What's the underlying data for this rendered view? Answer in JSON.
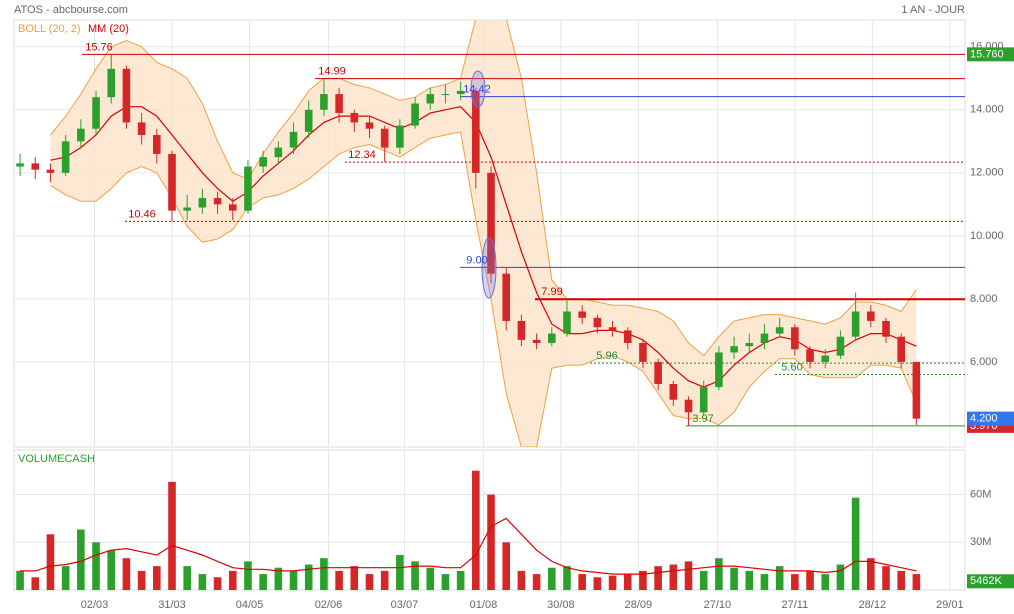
{
  "header": {
    "title": "ATOS - abcbourse.com",
    "period": "1 AN - JOUR"
  },
  "chart_data": [
    {
      "type": "candlestick",
      "xlim": [
        -0.4,
        62.2
      ],
      "xticks": [
        {
          "value": 4.9,
          "label": "02/03"
        },
        {
          "value": 10.0,
          "label": "31/03"
        },
        {
          "value": 15.1,
          "label": "04/05"
        },
        {
          "value": 20.3,
          "label": "02/06"
        },
        {
          "value": 25.3,
          "label": "03/07"
        },
        {
          "value": 30.5,
          "label": "01/08"
        },
        {
          "value": 35.6,
          "label": "30/08"
        },
        {
          "value": 40.7,
          "label": "28/09"
        },
        {
          "value": 45.9,
          "label": "27/10"
        },
        {
          "value": 51.0,
          "label": "27/11"
        },
        {
          "value": 56.1,
          "label": "28/12"
        },
        {
          "value": 61.2,
          "label": "29/01"
        }
      ],
      "ylim": [
        3.3,
        16.85
      ],
      "yticks": [
        {
          "value": 6,
          "label": "6.000"
        },
        {
          "value": 8,
          "label": "8.000"
        },
        {
          "value": 10,
          "label": "10.000"
        },
        {
          "value": 12,
          "label": "12.000"
        },
        {
          "value": 14,
          "label": "14.000"
        },
        {
          "value": 16,
          "label": "16.000"
        }
      ],
      "grid": true,
      "up_color": "#2ca02c",
      "down_color": "#d62728",
      "candles": [
        [
          12.2,
          12.6,
          11.9,
          12.3
        ],
        [
          12.3,
          12.5,
          11.8,
          12.1
        ],
        [
          12.1,
          12.3,
          11.7,
          12.0
        ],
        [
          12.0,
          13.2,
          11.9,
          13.0
        ],
        [
          13.0,
          13.7,
          12.8,
          13.4
        ],
        [
          13.4,
          14.6,
          13.2,
          14.4
        ],
        [
          14.4,
          15.76,
          14.2,
          15.3
        ],
        [
          15.3,
          15.4,
          13.4,
          13.6
        ],
        [
          13.6,
          13.9,
          12.9,
          13.2
        ],
        [
          13.2,
          13.4,
          12.3,
          12.6
        ],
        [
          12.6,
          12.7,
          10.46,
          10.8
        ],
        [
          10.8,
          11.3,
          10.5,
          10.9
        ],
        [
          10.9,
          11.5,
          10.7,
          11.2
        ],
        [
          11.2,
          11.4,
          10.7,
          11.0
        ],
        [
          11.0,
          11.2,
          10.5,
          10.8
        ],
        [
          10.8,
          12.4,
          10.7,
          12.2
        ],
        [
          12.2,
          12.7,
          12.0,
          12.5
        ],
        [
          12.5,
          13.0,
          12.3,
          12.8
        ],
        [
          12.8,
          13.6,
          12.6,
          13.3
        ],
        [
          13.3,
          14.3,
          13.1,
          14.0
        ],
        [
          14.0,
          14.99,
          13.8,
          14.5
        ],
        [
          14.5,
          14.7,
          13.6,
          13.9
        ],
        [
          13.9,
          14.0,
          13.3,
          13.6
        ],
        [
          13.6,
          13.8,
          13.1,
          13.4
        ],
        [
          13.4,
          13.5,
          12.34,
          12.8
        ],
        [
          12.8,
          13.7,
          12.6,
          13.5
        ],
        [
          13.5,
          14.4,
          13.4,
          14.2
        ],
        [
          14.2,
          14.7,
          14.0,
          14.5
        ],
        [
          14.5,
          14.8,
          14.2,
          14.5
        ],
        [
          14.5,
          14.9,
          14.3,
          14.6
        ],
        [
          14.6,
          14.7,
          11.5,
          12.0
        ],
        [
          12.0,
          12.2,
          8.5,
          8.8
        ],
        [
          8.8,
          9.0,
          7.0,
          7.3
        ],
        [
          7.3,
          7.5,
          6.5,
          6.7
        ],
        [
          6.7,
          6.9,
          6.4,
          6.6
        ],
        [
          6.6,
          7.1,
          6.5,
          6.9
        ],
        [
          6.9,
          7.99,
          6.8,
          7.6
        ],
        [
          7.6,
          7.8,
          7.2,
          7.4
        ],
        [
          7.4,
          7.5,
          6.9,
          7.1
        ],
        [
          7.1,
          7.3,
          6.8,
          7.0
        ],
        [
          7.0,
          7.1,
          6.4,
          6.6
        ],
        [
          6.6,
          6.7,
          5.8,
          6.0
        ],
        [
          6.0,
          6.1,
          5.1,
          5.3
        ],
        [
          5.3,
          5.4,
          4.6,
          4.8
        ],
        [
          4.8,
          4.9,
          3.97,
          4.4
        ],
        [
          4.4,
          5.4,
          4.3,
          5.2
        ],
        [
          5.2,
          6.5,
          5.1,
          6.3
        ],
        [
          6.3,
          6.8,
          6.1,
          6.5
        ],
        [
          6.5,
          6.9,
          6.3,
          6.6
        ],
        [
          6.6,
          7.2,
          6.4,
          6.9
        ],
        [
          6.9,
          7.4,
          6.8,
          7.1
        ],
        [
          7.1,
          7.2,
          6.2,
          6.4
        ],
        [
          6.4,
          6.5,
          5.8,
          6.0
        ],
        [
          6.0,
          6.4,
          5.8,
          6.2
        ],
        [
          6.2,
          7.0,
          6.1,
          6.8
        ],
        [
          6.8,
          8.2,
          6.7,
          7.6
        ],
        [
          7.6,
          7.8,
          7.1,
          7.3
        ],
        [
          7.3,
          7.4,
          6.6,
          6.8
        ],
        [
          6.8,
          6.9,
          5.8,
          6.0
        ],
        [
          6.0,
          6.0,
          4.0,
          4.2
        ]
      ],
      "bands": {
        "name": "BOLL (20, 2)",
        "color": "#f0a040",
        "fill": "#fde3c8",
        "upper": [
          null,
          null,
          13.2,
          13.8,
          14.5,
          15.3,
          16.0,
          16.2,
          16.0,
          15.5,
          15.3,
          15.0,
          14.2,
          13.0,
          12.0,
          11.8,
          12.6,
          13.3,
          13.9,
          14.6,
          15.0,
          15.0,
          14.8,
          14.7,
          14.5,
          14.3,
          14.4,
          14.7,
          14.8,
          15.0,
          16.9,
          16.9,
          16.9,
          15.0,
          12.0,
          8.6,
          8.0,
          8.0,
          7.9,
          7.8,
          7.8,
          7.7,
          7.6,
          7.3,
          6.6,
          6.2,
          6.8,
          7.3,
          7.4,
          7.5,
          7.5,
          7.4,
          7.3,
          7.2,
          7.4,
          7.9,
          7.9,
          7.8,
          7.6,
          8.3
        ],
        "lower": [
          null,
          null,
          11.6,
          11.3,
          11.1,
          11.1,
          11.5,
          12.0,
          12.2,
          12.0,
          11.2,
          10.3,
          9.8,
          9.9,
          10.2,
          10.9,
          11.2,
          11.3,
          11.5,
          11.8,
          12.2,
          12.6,
          12.8,
          12.9,
          12.7,
          12.5,
          12.8,
          13.1,
          13.2,
          13.3,
          10.5,
          8.0,
          5.0,
          3.3,
          3.3,
          5.8,
          5.9,
          5.9,
          6.1,
          6.2,
          6.0,
          5.7,
          5.0,
          4.3,
          4.2,
          4.2,
          4.0,
          4.4,
          5.2,
          5.7,
          6.1,
          6.1,
          5.6,
          5.5,
          5.5,
          5.5,
          5.9,
          5.9,
          5.8,
          4.7
        ]
      },
      "series": [
        {
          "name": "MM (20)",
          "color": "#e00000",
          "values": [
            null,
            null,
            12.4,
            12.5,
            12.8,
            13.2,
            13.8,
            14.1,
            14.1,
            13.8,
            13.2,
            12.6,
            12.0,
            11.5,
            11.1,
            11.4,
            11.9,
            12.3,
            12.7,
            13.2,
            13.6,
            13.8,
            13.8,
            13.8,
            13.6,
            13.4,
            13.6,
            13.9,
            14.0,
            14.1,
            13.6,
            12.5,
            11.0,
            9.5,
            8.2,
            7.2,
            6.9,
            6.9,
            7.0,
            7.0,
            6.9,
            6.7,
            6.3,
            5.8,
            5.4,
            5.2,
            5.4,
            5.9,
            6.3,
            6.6,
            6.8,
            6.7,
            6.4,
            6.3,
            6.4,
            6.7,
            6.9,
            6.9,
            6.7,
            6.5
          ]
        }
      ],
      "levels": [
        {
          "value": 15.76,
          "color": "#d00000",
          "style": "solid"
        },
        {
          "value": 14.99,
          "color": "#d00000",
          "style": "solid"
        },
        {
          "value": 14.42,
          "color": "#3344dd",
          "style": "solid"
        },
        {
          "value": 12.34,
          "color": "#d00000",
          "style": "dotted"
        },
        {
          "value": 10.46,
          "color": "#d00000",
          "style": "dotted"
        },
        {
          "value": 9.0,
          "label": "9.00",
          "color": "#3344dd",
          "style": "solid"
        },
        {
          "value": 7.99,
          "color": "#d00000",
          "style": "thick"
        },
        {
          "value": 5.96,
          "color": "#2a8a2a",
          "style": "dotted"
        },
        {
          "value": 5.6,
          "label": "5.60",
          "color": "#2a8a2a",
          "style": "dotted"
        },
        {
          "value": 3.97,
          "color": "#2a8a2a",
          "style": "solid"
        }
      ],
      "price_tags": [
        {
          "value": 15.76,
          "label": "15.760",
          "color": "#2ca02c"
        },
        {
          "value": 3.97,
          "label": "3.970",
          "color": "#d62728"
        },
        {
          "value": 4.2,
          "label": "4.200",
          "color": "#3377ee"
        }
      ]
    },
    {
      "type": "bar",
      "name": "VOLUMECASH",
      "color": "#2ca02c",
      "ylim": [
        0,
        88
      ],
      "yticks": [
        {
          "value": 30,
          "label": "30M"
        },
        {
          "value": 60,
          "label": "60M"
        }
      ],
      "values": [
        12,
        8,
        35,
        15,
        38,
        30,
        25,
        20,
        12,
        15,
        68,
        15,
        10,
        8,
        12,
        18,
        10,
        14,
        12,
        16,
        20,
        12,
        15,
        10,
        12,
        22,
        18,
        14,
        10,
        12,
        75,
        60,
        30,
        12,
        10,
        14,
        15,
        10,
        8,
        9,
        10,
        12,
        15,
        16,
        18,
        12,
        20,
        14,
        12,
        10,
        15,
        10,
        12,
        10,
        16,
        58,
        20,
        15,
        12,
        10
      ],
      "ma": {
        "color": "#e00000",
        "values": [
          12,
          12,
          15,
          16,
          18,
          22,
          25,
          26,
          24,
          22,
          28,
          25,
          22,
          18,
          14,
          13,
          13,
          12,
          12,
          13,
          14,
          14,
          14,
          14,
          14,
          14,
          15,
          15,
          14,
          14,
          22,
          40,
          45,
          35,
          25,
          18,
          14,
          12,
          11,
          10,
          10,
          10,
          11,
          12,
          13,
          14,
          15,
          15,
          14,
          13,
          12,
          12,
          12,
          11,
          12,
          18,
          18,
          16,
          14,
          12
        ]
      },
      "tag": {
        "value": 5.462,
        "label": "5462K",
        "color": "#2ca02c"
      }
    }
  ]
}
